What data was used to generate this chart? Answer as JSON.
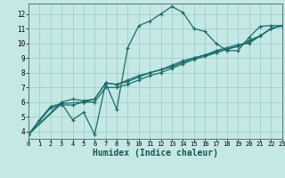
{
  "bg_color": "#c5e8e5",
  "plot_bg_color": "#c5e8e5",
  "grid_color": "#9ecece",
  "line_color": "#1a6b6b",
  "xlabel": "Humidex (Indice chaleur)",
  "xlim": [
    0,
    23
  ],
  "ylim": [
    3.5,
    12.7
  ],
  "xticks": [
    0,
    1,
    2,
    3,
    4,
    5,
    6,
    7,
    8,
    9,
    10,
    11,
    12,
    13,
    14,
    15,
    16,
    17,
    18,
    19,
    20,
    21,
    22,
    23
  ],
  "yticks": [
    4,
    5,
    6,
    7,
    8,
    9,
    10,
    11,
    12
  ],
  "lines": [
    {
      "x": [
        0,
        1,
        2,
        3,
        4,
        5,
        6,
        7,
        8,
        9,
        10,
        11,
        12,
        13,
        14,
        15,
        16,
        17,
        18,
        19,
        20,
        21,
        22,
        23
      ],
      "y": [
        3.8,
        4.8,
        5.7,
        5.9,
        4.8,
        5.3,
        3.8,
        7.3,
        5.5,
        9.7,
        11.2,
        11.5,
        12.0,
        12.5,
        12.1,
        11.0,
        10.8,
        10.0,
        9.5,
        9.5,
        10.4,
        11.15,
        11.2,
        11.2
      ]
    },
    {
      "x": [
        0,
        2,
        3,
        4,
        5,
        6,
        7,
        8,
        9,
        10,
        11,
        12,
        13,
        14,
        15,
        16,
        17,
        18,
        19,
        20,
        21,
        22,
        23
      ],
      "y": [
        3.8,
        5.6,
        5.8,
        5.8,
        6.0,
        6.2,
        7.3,
        7.2,
        7.4,
        7.7,
        8.0,
        8.2,
        8.4,
        8.7,
        9.0,
        9.2,
        9.4,
        9.6,
        9.8,
        10.2,
        10.5,
        11.0,
        11.2
      ]
    },
    {
      "x": [
        0,
        3,
        4,
        5,
        6,
        7,
        8,
        9,
        10,
        11,
        12,
        13,
        14,
        15,
        16,
        17,
        18,
        19,
        20,
        21,
        22,
        23
      ],
      "y": [
        3.8,
        6.0,
        6.2,
        6.1,
        6.2,
        7.3,
        7.2,
        7.5,
        7.8,
        8.0,
        8.2,
        8.5,
        8.8,
        9.0,
        9.2,
        9.5,
        9.7,
        9.9,
        10.0,
        10.5,
        11.0,
        11.2
      ]
    },
    {
      "x": [
        0,
        3,
        5,
        6,
        7,
        8,
        9,
        10,
        11,
        12,
        13,
        14,
        15,
        16,
        17,
        18,
        19,
        20,
        21,
        22,
        23
      ],
      "y": [
        3.8,
        5.9,
        6.0,
        6.0,
        7.0,
        7.0,
        7.2,
        7.5,
        7.8,
        8.0,
        8.3,
        8.6,
        8.9,
        9.1,
        9.35,
        9.6,
        9.8,
        10.1,
        10.5,
        11.0,
        11.2
      ]
    }
  ]
}
